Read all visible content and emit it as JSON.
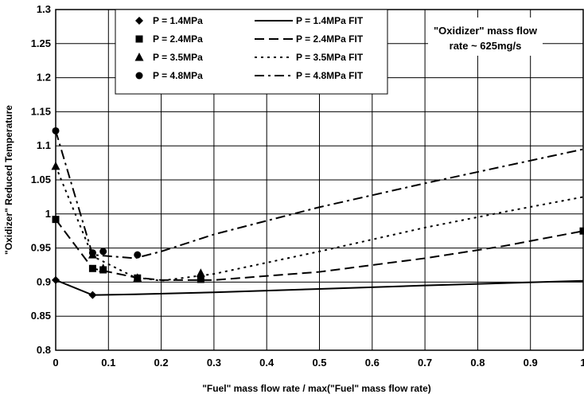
{
  "chart_data": {
    "type": "scatter",
    "xlabel": "\"Fuel\" mass flow rate / max(\"Fuel\" mass flow rate)",
    "ylabel": "\"Oxidizer\" Reduced Temperature",
    "xlim": [
      0,
      1
    ],
    "ylim": [
      0.8,
      1.3
    ],
    "x_ticks": [
      0,
      0.1,
      0.2,
      0.3,
      0.4,
      0.5,
      0.6,
      0.7,
      0.8,
      0.9,
      1
    ],
    "y_ticks": [
      0.8,
      0.85,
      0.9,
      0.95,
      1,
      1.05,
      1.1,
      1.15,
      1.2,
      1.25,
      1.3
    ],
    "x_tick_labels": [
      "0",
      "0.1",
      "0.2",
      "0.3",
      "0.4",
      "0.5",
      "0.6",
      "0.7",
      "0.8",
      "0.9",
      "1"
    ],
    "y_tick_labels": [
      "0.8",
      "0.85",
      "0.9",
      "0.95",
      "1",
      "1.05",
      "1.1",
      "1.15",
      "1.2",
      "1.25",
      "1.3"
    ],
    "grid": true,
    "legend_position": "top-left",
    "annotation": [
      "\"Oxidizer\" mass flow",
      "rate ~ 625mg/s"
    ],
    "series": [
      {
        "name": "P = 1.4MPa",
        "marker": "diamond",
        "x": [
          0,
          0.07
        ],
        "y": [
          0.903,
          0.881
        ]
      },
      {
        "name": "P = 2.4MPa",
        "marker": "square",
        "x": [
          0,
          0.07,
          0.09,
          0.155,
          0.275,
          1.0
        ],
        "y": [
          0.992,
          0.92,
          0.918,
          0.906,
          0.904,
          0.975
        ]
      },
      {
        "name": "P = 3.5MPa",
        "marker": "triangle",
        "x": [
          0,
          0.07,
          0.09,
          0.155,
          0.275
        ],
        "y": [
          1.07,
          0.94,
          0.92,
          0.906,
          0.913
        ]
      },
      {
        "name": "P = 4.8MPa",
        "marker": "circle",
        "x": [
          0,
          0.07,
          0.09,
          0.155
        ],
        "y": [
          1.122,
          0.943,
          0.945,
          0.94
        ]
      },
      {
        "name": "P = 1.4MPa FIT",
        "dash": "solid",
        "x": [
          0,
          0.07,
          0.15,
          0.3,
          0.5,
          0.7,
          1.0
        ],
        "y": [
          0.903,
          0.881,
          0.882,
          0.885,
          0.89,
          0.895,
          0.902
        ]
      },
      {
        "name": "P = 2.4MPa FIT",
        "dash": "long-dash",
        "x": [
          0,
          0.07,
          0.15,
          0.2,
          0.3,
          0.5,
          0.7,
          0.85,
          1.0
        ],
        "y": [
          0.992,
          0.92,
          0.907,
          0.903,
          0.903,
          0.915,
          0.935,
          0.953,
          0.975
        ]
      },
      {
        "name": "P = 3.5MPa FIT",
        "dash": "dotted",
        "x": [
          0,
          0.07,
          0.15,
          0.2,
          0.3,
          0.5,
          0.7,
          0.85,
          1.0
        ],
        "y": [
          1.07,
          0.938,
          0.907,
          0.902,
          0.912,
          0.945,
          0.98,
          1.003,
          1.025
        ],
        "x_start": 0
      },
      {
        "name": "P = 4.8MPa FIT",
        "dash": "dash-dot",
        "x": [
          0,
          0.07,
          0.15,
          0.2,
          0.3,
          0.5,
          0.7,
          0.85,
          1.0
        ],
        "y": [
          1.122,
          0.94,
          0.935,
          0.945,
          0.97,
          1.01,
          1.045,
          1.07,
          1.095
        ]
      }
    ]
  }
}
